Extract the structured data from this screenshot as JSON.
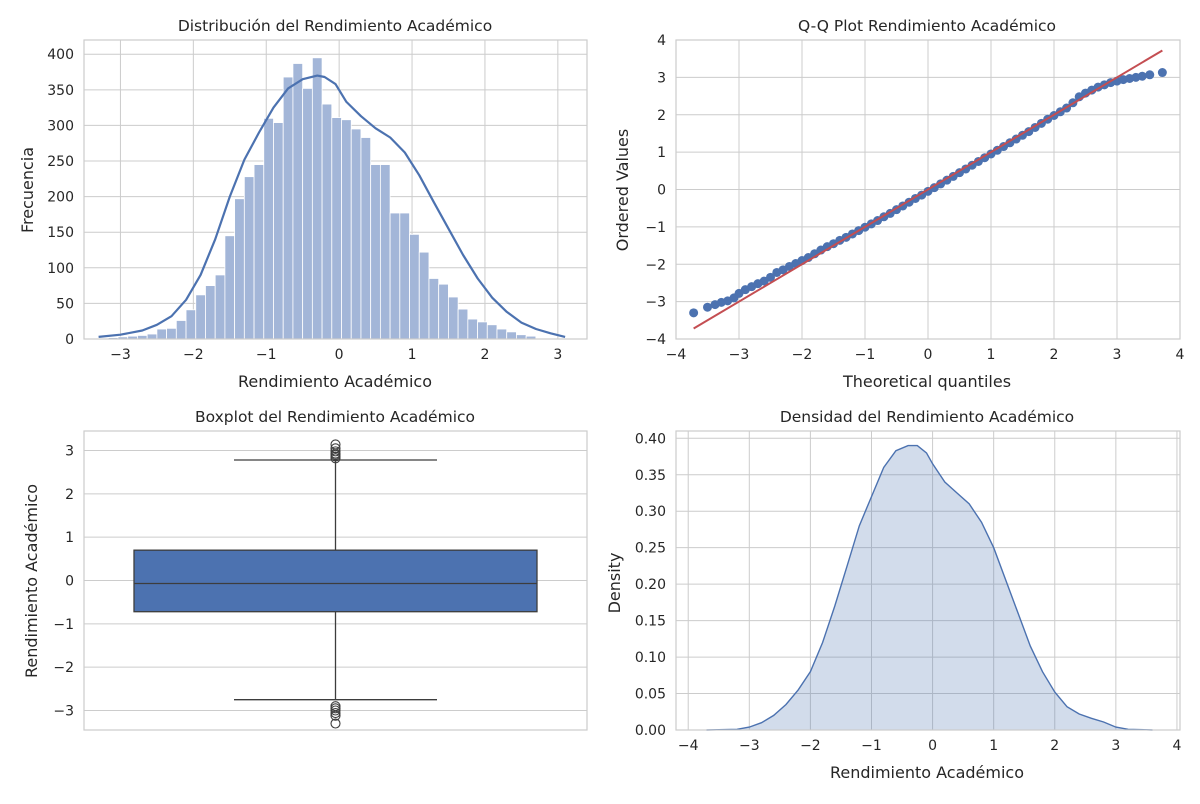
{
  "colors": {
    "primary": "#4c72b0",
    "fit_line": "#c44e52",
    "bar_fill": "#a3b6d8",
    "density_fill": "#d0d9ea"
  },
  "chart_data": [
    {
      "type": "bar",
      "title": "Distribución del Rendimiento Académico",
      "xlabel": "Rendimiento Académico",
      "ylabel": "Frecuencia",
      "xlim": [
        -3.5,
        3.4
      ],
      "ylim": [
        0,
        420
      ],
      "xticks": [
        -3,
        -2,
        -1,
        0,
        1,
        2,
        3
      ],
      "yticks": [
        0,
        50,
        100,
        150,
        200,
        250,
        300,
        350,
        400
      ],
      "grid": true,
      "bin_start": -3.3,
      "bin_width": 0.1333,
      "values": [
        1,
        2,
        3,
        4,
        5,
        7,
        14,
        15,
        26,
        41,
        62,
        75,
        90,
        145,
        197,
        228,
        245,
        310,
        304,
        368,
        387,
        352,
        395,
        330,
        311,
        308,
        295,
        283,
        245,
        245,
        177,
        177,
        147,
        122,
        85,
        77,
        59,
        42,
        28,
        24,
        20,
        14,
        10,
        6,
        4
      ],
      "kde": {
        "x": [
          -3.3,
          -3.0,
          -2.7,
          -2.5,
          -2.3,
          -2.1,
          -1.9,
          -1.7,
          -1.5,
          -1.3,
          -1.1,
          -0.9,
          -0.7,
          -0.5,
          -0.3,
          -0.2,
          -0.05,
          0.1,
          0.3,
          0.5,
          0.7,
          0.9,
          1.1,
          1.3,
          1.5,
          1.7,
          1.9,
          2.1,
          2.3,
          2.5,
          2.7,
          2.9,
          3.1
        ],
        "y": [
          3,
          6,
          12,
          20,
          32,
          55,
          90,
          140,
          200,
          252,
          290,
          325,
          352,
          365,
          370,
          368,
          358,
          333,
          313,
          296,
          283,
          262,
          230,
          192,
          155,
          118,
          85,
          58,
          38,
          23,
          14,
          8,
          3
        ]
      }
    },
    {
      "type": "scatter",
      "title": "Q-Q Plot Rendimiento Académico",
      "xlabel": "Theoretical quantiles",
      "ylabel": "Ordered Values",
      "xlim": [
        -4,
        4
      ],
      "ylim": [
        -4,
        4
      ],
      "xticks": [
        -4,
        -3,
        -2,
        -1,
        0,
        1,
        2,
        3,
        4
      ],
      "yticks": [
        -4,
        -3,
        -2,
        -1,
        0,
        1,
        2,
        3,
        4
      ],
      "grid": true,
      "points": [
        [
          -3.72,
          -3.3
        ],
        [
          -3.5,
          -3.15
        ],
        [
          -3.38,
          -3.08
        ],
        [
          -3.28,
          -3.02
        ],
        [
          -3.18,
          -2.98
        ],
        [
          -3.08,
          -2.9
        ],
        [
          -3.0,
          -2.78
        ],
        [
          -2.9,
          -2.68
        ],
        [
          -2.8,
          -2.6
        ],
        [
          -2.7,
          -2.52
        ],
        [
          -2.6,
          -2.45
        ],
        [
          -2.5,
          -2.35
        ],
        [
          -2.4,
          -2.22
        ],
        [
          -2.3,
          -2.15
        ],
        [
          -2.2,
          -2.06
        ],
        [
          -2.1,
          -1.98
        ],
        [
          -2.0,
          -1.9
        ],
        [
          -1.9,
          -1.82
        ],
        [
          -1.8,
          -1.72
        ],
        [
          -1.7,
          -1.62
        ],
        [
          -1.6,
          -1.53
        ],
        [
          -1.5,
          -1.45
        ],
        [
          -1.4,
          -1.36
        ],
        [
          -1.3,
          -1.28
        ],
        [
          -1.2,
          -1.19
        ],
        [
          -1.1,
          -1.1
        ],
        [
          -1.0,
          -1.01
        ],
        [
          -0.9,
          -0.92
        ],
        [
          -0.8,
          -0.83
        ],
        [
          -0.7,
          -0.73
        ],
        [
          -0.6,
          -0.64
        ],
        [
          -0.5,
          -0.54
        ],
        [
          -0.4,
          -0.44
        ],
        [
          -0.3,
          -0.34
        ],
        [
          -0.2,
          -0.24
        ],
        [
          -0.1,
          -0.15
        ],
        [
          0.0,
          -0.05
        ],
        [
          0.1,
          0.05
        ],
        [
          0.2,
          0.15
        ],
        [
          0.3,
          0.25
        ],
        [
          0.4,
          0.35
        ],
        [
          0.5,
          0.45
        ],
        [
          0.6,
          0.55
        ],
        [
          0.7,
          0.65
        ],
        [
          0.8,
          0.75
        ],
        [
          0.9,
          0.85
        ],
        [
          1.0,
          0.95
        ],
        [
          1.1,
          1.05
        ],
        [
          1.2,
          1.15
        ],
        [
          1.3,
          1.25
        ],
        [
          1.4,
          1.35
        ],
        [
          1.5,
          1.45
        ],
        [
          1.6,
          1.55
        ],
        [
          1.7,
          1.66
        ],
        [
          1.8,
          1.77
        ],
        [
          1.9,
          1.88
        ],
        [
          2.0,
          1.98
        ],
        [
          2.1,
          2.08
        ],
        [
          2.2,
          2.18
        ],
        [
          2.3,
          2.32
        ],
        [
          2.4,
          2.48
        ],
        [
          2.5,
          2.58
        ],
        [
          2.6,
          2.66
        ],
        [
          2.7,
          2.74
        ],
        [
          2.8,
          2.8
        ],
        [
          2.9,
          2.86
        ],
        [
          3.0,
          2.9
        ],
        [
          3.1,
          2.94
        ],
        [
          3.2,
          2.97
        ],
        [
          3.3,
          3.0
        ],
        [
          3.4,
          3.03
        ],
        [
          3.52,
          3.07
        ],
        [
          3.72,
          3.13
        ]
      ],
      "fit_line": [
        [
          -3.72,
          -3.72
        ],
        [
          3.72,
          3.72
        ]
      ]
    },
    {
      "type": "box",
      "title": "Boxplot del Rendimiento Académico",
      "ylabel": "Rendimiento Académico",
      "ylim": [
        -3.45,
        3.45
      ],
      "yticks": [
        -3,
        -2,
        -1,
        0,
        1,
        2,
        3
      ],
      "grid": true,
      "q1": -0.72,
      "median": -0.07,
      "q3": 0.7,
      "whisker_low": -2.75,
      "whisker_high": 2.78,
      "outliers": [
        2.82,
        2.86,
        2.9,
        2.93,
        2.98,
        3.05,
        3.14,
        -2.9,
        -2.95,
        -3.0,
        -3.06,
        -3.12,
        -3.3
      ]
    },
    {
      "type": "area",
      "title": "Densidad del Rendimiento Académico",
      "xlabel": "Rendimiento Académico",
      "ylabel": "Density",
      "xlim": [
        -4.2,
        4.05
      ],
      "ylim": [
        0,
        0.41
      ],
      "xticks": [
        -4,
        -3,
        -2,
        -1,
        0,
        1,
        2,
        3,
        4
      ],
      "yticks": [
        0.0,
        0.05,
        0.1,
        0.15,
        0.2,
        0.25,
        0.3,
        0.35,
        0.4
      ],
      "ytick_labels": [
        "0.00",
        "0.05",
        "0.10",
        "0.15",
        "0.20",
        "0.25",
        "0.30",
        "0.35",
        "0.40"
      ],
      "grid": true,
      "x": [
        -3.7,
        -3.2,
        -3.0,
        -2.8,
        -2.6,
        -2.4,
        -2.2,
        -2.0,
        -1.8,
        -1.6,
        -1.4,
        -1.2,
        -1.0,
        -0.8,
        -0.6,
        -0.4,
        -0.25,
        -0.1,
        0.0,
        0.2,
        0.4,
        0.6,
        0.8,
        1.0,
        1.2,
        1.4,
        1.6,
        1.8,
        2.0,
        2.2,
        2.4,
        2.6,
        2.8,
        3.0,
        3.2,
        3.6
      ],
      "y": [
        0.0,
        0.001,
        0.004,
        0.01,
        0.02,
        0.035,
        0.055,
        0.08,
        0.12,
        0.17,
        0.225,
        0.28,
        0.32,
        0.36,
        0.383,
        0.39,
        0.39,
        0.38,
        0.365,
        0.34,
        0.325,
        0.31,
        0.285,
        0.25,
        0.205,
        0.16,
        0.115,
        0.08,
        0.052,
        0.032,
        0.022,
        0.016,
        0.011,
        0.004,
        0.001,
        0.0
      ]
    }
  ]
}
